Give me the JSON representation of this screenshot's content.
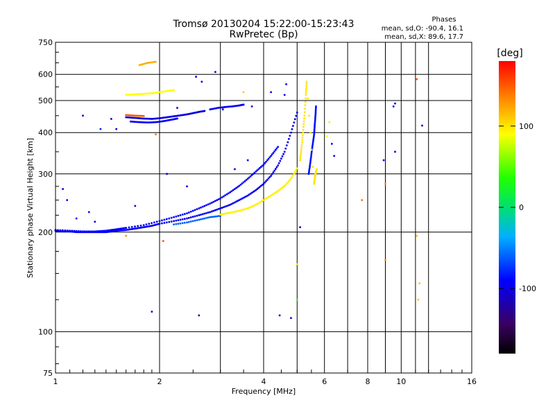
{
  "chart_data": {
    "type": "scatter",
    "title": "Tromsø 20130204 15:22:00-15:23:43",
    "subtitle": "RwPretec (Bp)",
    "phases": {
      "heading": "Phases",
      "line1": "mean, sd,O: -90.4, 16.1",
      "line2": "mean, sd,X:  89.6, 17.7"
    },
    "xlabel": "Frequency [MHz]",
    "ylabel": "Stationary phase Virtual Height [km]",
    "x_scale": "log",
    "y_scale": "log",
    "xlim": [
      1,
      16
    ],
    "ylim": [
      75,
      750
    ],
    "xticks": [
      {
        "value": 1,
        "label": "1"
      },
      {
        "value": 2,
        "label": "2"
      },
      {
        "value": 4,
        "label": "4"
      },
      {
        "value": 6,
        "label": "6"
      },
      {
        "value": 8,
        "label": "8"
      },
      {
        "value": 10,
        "label": "10"
      },
      {
        "value": 16,
        "label": "16"
      }
    ],
    "yticks": [
      {
        "value": 75,
        "label": "75"
      },
      {
        "value": 100,
        "label": "100"
      },
      {
        "value": 200,
        "label": "200"
      },
      {
        "value": 300,
        "label": "300"
      },
      {
        "value": 400,
        "label": "400"
      },
      {
        "value": 500,
        "label": "500"
      },
      {
        "value": 600,
        "label": "600"
      },
      {
        "value": 750,
        "label": "750"
      }
    ],
    "grid": true,
    "colorbar": {
      "label": "[deg]",
      "range": [
        -180,
        180
      ],
      "ticks": [
        {
          "value": 100,
          "label": "100"
        },
        {
          "value": 0,
          "label": "0"
        },
        {
          "value": -100,
          "label": "-100"
        }
      ]
    },
    "traces": [
      {
        "phase": -95,
        "points": [
          [
            1.0,
            202
          ],
          [
            1.05,
            201
          ],
          [
            1.1,
            201
          ],
          [
            1.15,
            200
          ],
          [
            1.2,
            200
          ],
          [
            1.25,
            200
          ],
          [
            1.3,
            200
          ],
          [
            1.35,
            200
          ],
          [
            1.4,
            200
          ],
          [
            1.45,
            201
          ],
          [
            1.5,
            202
          ],
          [
            1.6,
            203
          ],
          [
            1.7,
            205
          ],
          [
            1.8,
            207
          ],
          [
            1.9,
            209
          ],
          [
            2.0,
            212
          ],
          [
            2.2,
            216
          ],
          [
            2.4,
            220
          ],
          [
            2.6,
            225
          ],
          [
            2.8,
            230
          ],
          [
            3.0,
            236
          ],
          [
            3.2,
            242
          ],
          [
            3.4,
            250
          ],
          [
            3.6,
            258
          ],
          [
            3.8,
            268
          ],
          [
            4.0,
            280
          ],
          [
            4.2,
            296
          ],
          [
            4.4,
            318
          ],
          [
            4.6,
            350
          ],
          [
            4.8,
            400
          ],
          [
            5.0,
            460
          ]
        ]
      },
      {
        "phase": -90,
        "points": [
          [
            1.0,
            203
          ],
          [
            1.1,
            202
          ],
          [
            1.2,
            201
          ],
          [
            1.3,
            201
          ],
          [
            1.4,
            202
          ],
          [
            1.5,
            204
          ],
          [
            1.6,
            206
          ],
          [
            1.8,
            210
          ],
          [
            2.0,
            216
          ],
          [
            2.2,
            222
          ],
          [
            2.4,
            228
          ],
          [
            2.6,
            236
          ],
          [
            2.8,
            244
          ],
          [
            3.0,
            253
          ],
          [
            3.2,
            264
          ],
          [
            3.4,
            276
          ],
          [
            3.6,
            290
          ],
          [
            3.8,
            305
          ],
          [
            4.0,
            320
          ],
          [
            4.2,
            340
          ],
          [
            4.4,
            362
          ]
        ]
      },
      {
        "phase": -100,
        "points": [
          [
            1.6,
            445
          ],
          [
            1.7,
            443
          ],
          [
            1.8,
            441
          ],
          [
            1.9,
            440
          ],
          [
            2.0,
            442
          ],
          [
            2.1,
            445
          ],
          [
            2.2,
            448
          ],
          [
            2.3,
            451
          ],
          [
            2.4,
            454
          ],
          [
            2.5,
            458
          ],
          [
            2.6,
            462
          ],
          [
            2.7,
            465
          ]
        ]
      },
      {
        "phase": -92,
        "points": [
          [
            1.65,
            432
          ],
          [
            1.75,
            430
          ],
          [
            1.85,
            429
          ],
          [
            1.95,
            430
          ],
          [
            2.05,
            433
          ],
          [
            2.15,
            437
          ],
          [
            2.25,
            441
          ]
        ]
      },
      {
        "phase": -95,
        "points": [
          [
            2.8,
            470
          ],
          [
            2.95,
            475
          ],
          [
            3.1,
            478
          ],
          [
            3.25,
            480
          ],
          [
            3.4,
            483
          ],
          [
            3.5,
            486
          ]
        ]
      },
      {
        "phase": -85,
        "points": [
          [
            5.4,
            300
          ],
          [
            5.45,
            320
          ],
          [
            5.5,
            345
          ],
          [
            5.55,
            370
          ],
          [
            5.6,
            395
          ],
          [
            5.62,
            420
          ],
          [
            5.65,
            450
          ],
          [
            5.67,
            480
          ]
        ]
      },
      {
        "phase": -60,
        "points": [
          [
            2.2,
            211
          ],
          [
            2.4,
            214
          ],
          [
            2.6,
            218
          ],
          [
            2.8,
            222
          ],
          [
            3.0,
            224
          ]
        ]
      },
      {
        "phase": 95,
        "points": [
          [
            3.0,
            226
          ],
          [
            3.2,
            229
          ],
          [
            3.4,
            232
          ],
          [
            3.6,
            236
          ],
          [
            3.8,
            242
          ],
          [
            4.0,
            250
          ],
          [
            4.2,
            258
          ],
          [
            4.4,
            266
          ],
          [
            4.6,
            276
          ],
          [
            4.8,
            290
          ],
          [
            5.0,
            312
          ]
        ]
      },
      {
        "phase": 100,
        "points": [
          [
            5.1,
            330
          ],
          [
            5.15,
            360
          ],
          [
            5.2,
            400
          ],
          [
            5.25,
            450
          ],
          [
            5.3,
            520
          ],
          [
            5.33,
            570
          ],
          [
            5.6,
            280
          ],
          [
            5.62,
            290
          ],
          [
            5.65,
            300
          ],
          [
            5.7,
            310
          ]
        ]
      },
      {
        "phase": 90,
        "points": [
          [
            1.6,
            520
          ],
          [
            1.7,
            522
          ],
          [
            1.8,
            524
          ],
          [
            1.9,
            526
          ],
          [
            2.0,
            530
          ],
          [
            2.1,
            534
          ],
          [
            2.2,
            538
          ]
        ]
      },
      {
        "phase": 150,
        "points": [
          [
            1.6,
            452
          ],
          [
            1.7,
            450
          ],
          [
            1.8,
            449
          ]
        ]
      },
      {
        "phase": 120,
        "points": [
          [
            1.75,
            640
          ],
          [
            1.85,
            650
          ],
          [
            1.95,
            655
          ]
        ]
      }
    ],
    "scatter": [
      {
        "x": 1.05,
        "y": 270,
        "phase": -100
      },
      {
        "x": 1.08,
        "y": 250,
        "phase": -90
      },
      {
        "x": 1.15,
        "y": 220,
        "phase": -95
      },
      {
        "x": 1.25,
        "y": 230,
        "phase": -100
      },
      {
        "x": 1.35,
        "y": 410,
        "phase": -80
      },
      {
        "x": 1.45,
        "y": 440,
        "phase": -100
      },
      {
        "x": 1.2,
        "y": 450,
        "phase": -100
      },
      {
        "x": 1.9,
        "y": 115,
        "phase": -105
      },
      {
        "x": 2.6,
        "y": 112,
        "phase": -110
      },
      {
        "x": 1.6,
        "y": 195,
        "phase": 130
      },
      {
        "x": 2.05,
        "y": 188,
        "phase": 150
      },
      {
        "x": 2.55,
        "y": 590,
        "phase": -100
      },
      {
        "x": 2.65,
        "y": 570,
        "phase": -95
      },
      {
        "x": 2.9,
        "y": 610,
        "phase": -110
      },
      {
        "x": 3.5,
        "y": 530,
        "phase": 110
      },
      {
        "x": 4.45,
        "y": 112,
        "phase": -105
      },
      {
        "x": 4.8,
        "y": 110,
        "phase": -100
      },
      {
        "x": 5.0,
        "y": 160,
        "phase": 100
      },
      {
        "x": 5.0,
        "y": 125,
        "phase": 50
      },
      {
        "x": 5.1,
        "y": 207,
        "phase": -100
      },
      {
        "x": 6.2,
        "y": 430,
        "phase": 80
      },
      {
        "x": 6.3,
        "y": 370,
        "phase": -90
      },
      {
        "x": 6.4,
        "y": 340,
        "phase": -90
      },
      {
        "x": 7.7,
        "y": 250,
        "phase": 140
      },
      {
        "x": 8.9,
        "y": 330,
        "phase": -100
      },
      {
        "x": 9.0,
        "y": 280,
        "phase": 130
      },
      {
        "x": 9.0,
        "y": 165,
        "phase": 130
      },
      {
        "x": 9.5,
        "y": 480,
        "phase": -100
      },
      {
        "x": 9.6,
        "y": 350,
        "phase": -100
      },
      {
        "x": 9.6,
        "y": 490,
        "phase": -90
      },
      {
        "x": 11.1,
        "y": 580,
        "phase": 150
      },
      {
        "x": 11.1,
        "y": 195,
        "phase": 110
      },
      {
        "x": 11.2,
        "y": 125,
        "phase": 110
      },
      {
        "x": 11.3,
        "y": 140,
        "phase": 110
      },
      {
        "x": 11.5,
        "y": 420,
        "phase": -100
      },
      {
        "x": 4.2,
        "y": 530,
        "phase": -90
      },
      {
        "x": 3.7,
        "y": 480,
        "phase": -100
      },
      {
        "x": 1.3,
        "y": 215,
        "phase": -95
      },
      {
        "x": 1.7,
        "y": 240,
        "phase": -100
      },
      {
        "x": 2.1,
        "y": 300,
        "phase": -100
      },
      {
        "x": 2.4,
        "y": 275,
        "phase": -95
      },
      {
        "x": 3.3,
        "y": 310,
        "phase": -100
      },
      {
        "x": 3.6,
        "y": 330,
        "phase": -95
      },
      {
        "x": 4.6,
        "y": 520,
        "phase": -100
      },
      {
        "x": 4.65,
        "y": 560,
        "phase": -100
      },
      {
        "x": 1.5,
        "y": 410,
        "phase": -100
      },
      {
        "x": 2.25,
        "y": 475,
        "phase": -95
      },
      {
        "x": 1.95,
        "y": 395,
        "phase": 140
      },
      {
        "x": 6.1,
        "y": 390,
        "phase": 90
      },
      {
        "x": 3.05,
        "y": 470,
        "phase": -100
      }
    ]
  }
}
